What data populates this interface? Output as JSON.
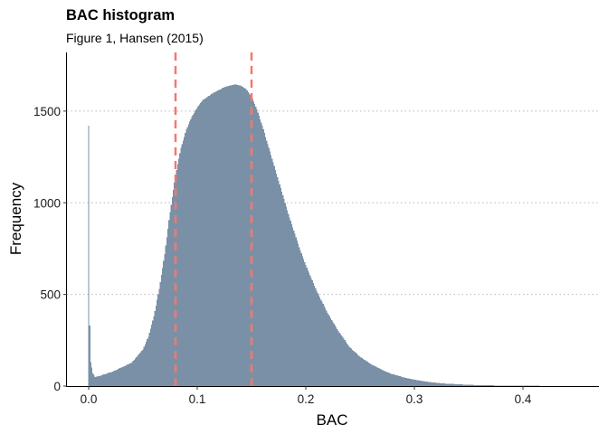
{
  "chart_data": {
    "type": "bar",
    "title": "BAC histogram",
    "subtitle": "Figure 1, Hansen (2015)",
    "xlabel": "BAC",
    "ylabel": "Frequency",
    "xlim": [
      -0.02,
      0.47
    ],
    "ylim": [
      0,
      1820
    ],
    "x_ticks": [
      0.0,
      0.1,
      0.2,
      0.3,
      0.4
    ],
    "x_tick_labels": [
      "0.0",
      "0.1",
      "0.2",
      "0.3",
      "0.4"
    ],
    "y_ticks": [
      0,
      500,
      1000,
      1500
    ],
    "y_tick_labels": [
      "0",
      "500",
      "1000",
      "1500"
    ],
    "bin_width": 0.001,
    "grid": "horizontal dotted at y ticks",
    "bar_color": "#7a90a7",
    "reference_lines": [
      {
        "x": 0.08,
        "color": "#f8766d",
        "style": "dashed"
      },
      {
        "x": 0.15,
        "color": "#f8766d",
        "style": "dashed"
      }
    ],
    "x": [
      0.0,
      0.001,
      0.002,
      0.004,
      0.006,
      0.01,
      0.02,
      0.03,
      0.04,
      0.05,
      0.055,
      0.06,
      0.065,
      0.07,
      0.075,
      0.08,
      0.085,
      0.09,
      0.095,
      0.1,
      0.105,
      0.11,
      0.115,
      0.12,
      0.125,
      0.13,
      0.135,
      0.14,
      0.145,
      0.15,
      0.155,
      0.16,
      0.165,
      0.17,
      0.175,
      0.18,
      0.185,
      0.19,
      0.195,
      0.2,
      0.205,
      0.21,
      0.215,
      0.22,
      0.225,
      0.23,
      0.235,
      0.24,
      0.25,
      0.26,
      0.27,
      0.28,
      0.29,
      0.3,
      0.31,
      0.32,
      0.33,
      0.34,
      0.35,
      0.36,
      0.37,
      0.38,
      0.4,
      0.42,
      0.44,
      0.46
    ],
    "values": [
      1420,
      330,
      130,
      70,
      50,
      55,
      75,
      100,
      130,
      200,
      270,
      380,
      530,
      720,
      950,
      1150,
      1300,
      1400,
      1470,
      1520,
      1560,
      1580,
      1600,
      1615,
      1630,
      1640,
      1645,
      1640,
      1620,
      1580,
      1510,
      1420,
      1320,
      1220,
      1120,
      1020,
      920,
      830,
      740,
      660,
      590,
      520,
      460,
      400,
      350,
      300,
      260,
      215,
      160,
      120,
      90,
      65,
      48,
      35,
      25,
      18,
      13,
      10,
      7,
      5,
      4,
      3,
      2,
      1,
      1,
      0
    ]
  }
}
